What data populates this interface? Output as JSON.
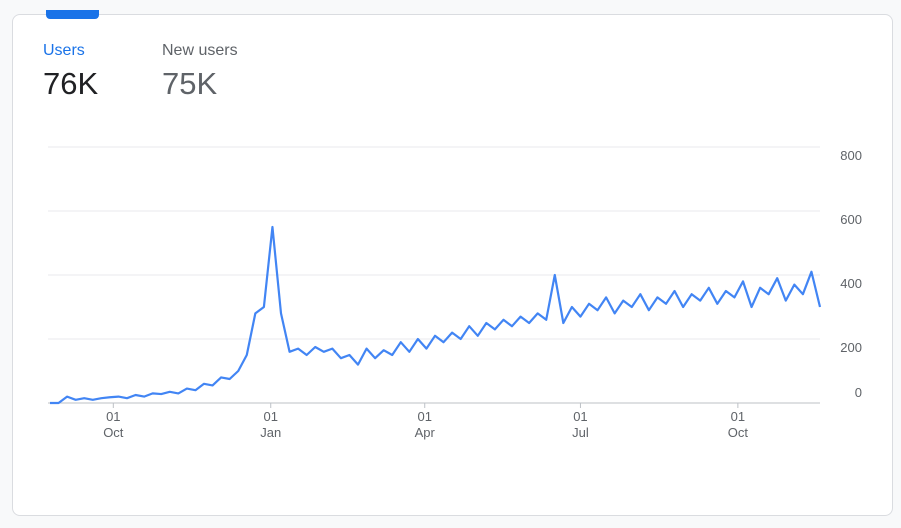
{
  "metrics": [
    {
      "label": "Users",
      "value": "76K"
    },
    {
      "label": "New users",
      "value": "75K"
    }
  ],
  "chart_data": {
    "type": "line",
    "color": "#4285f4",
    "grid": true,
    "values": [
      0,
      0,
      20,
      10,
      15,
      10,
      15,
      18,
      20,
      15,
      25,
      20,
      30,
      28,
      35,
      30,
      45,
      40,
      60,
      55,
      80,
      75,
      100,
      150,
      280,
      300,
      550,
      280,
      160,
      170,
      150,
      175,
      160,
      170,
      140,
      150,
      120,
      170,
      140,
      165,
      150,
      190,
      160,
      200,
      170,
      210,
      190,
      220,
      200,
      240,
      210,
      250,
      230,
      260,
      240,
      270,
      250,
      280,
      260,
      400,
      250,
      300,
      270,
      310,
      290,
      330,
      280,
      320,
      300,
      340,
      290,
      330,
      310,
      350,
      300,
      340,
      320,
      360,
      310,
      350,
      330,
      380,
      300,
      360,
      340,
      390,
      320,
      370,
      340,
      410,
      300
    ],
    "xlim": [
      0,
      90
    ],
    "xticks": [
      {
        "value": 7.4,
        "label": "01 Oct"
      },
      {
        "value": 25.8,
        "label": "01 Jan"
      },
      {
        "value": 43.8,
        "label": "01 Apr"
      },
      {
        "value": 62,
        "label": "01 Jul"
      },
      {
        "value": 80.4,
        "label": "01 Oct"
      }
    ],
    "ylim": [
      0,
      800
    ],
    "yticks": [
      0,
      200,
      400,
      600,
      800
    ]
  }
}
